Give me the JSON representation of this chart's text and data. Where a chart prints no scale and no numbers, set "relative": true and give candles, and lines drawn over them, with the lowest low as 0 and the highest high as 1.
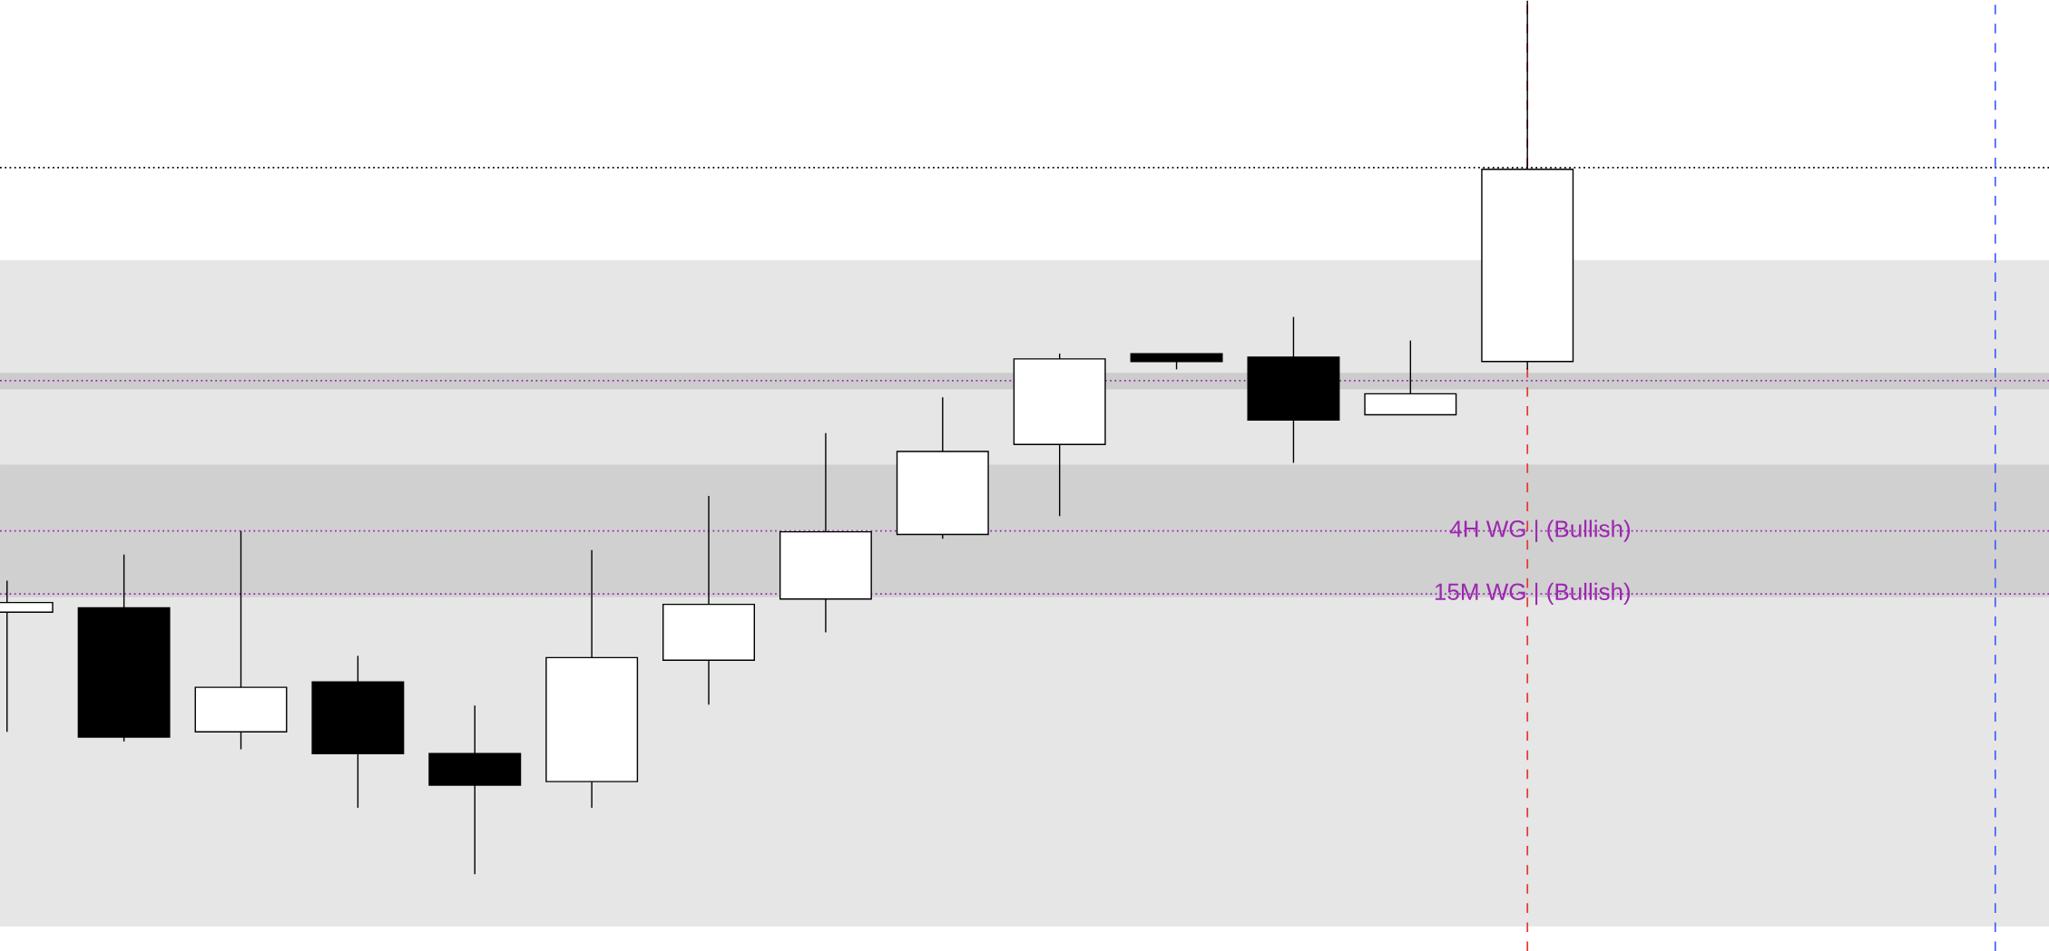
{
  "chart_data": {
    "type": "candlestick",
    "relative": true,
    "tick_labels": false,
    "categories": [
      null,
      null,
      null,
      null,
      null,
      null,
      null,
      null,
      null,
      null,
      null,
      null,
      null,
      null
    ],
    "ohlc": [
      [
        0.3,
        0.336,
        0.163,
        0.311
      ],
      [
        0.305,
        0.366,
        0.152,
        0.157
      ],
      [
        0.163,
        0.393,
        0.143,
        0.214
      ],
      [
        0.22,
        0.25,
        0.076,
        0.138
      ],
      [
        0.138,
        0.193,
        0,
        0.102
      ],
      [
        0.106,
        0.371,
        0.076,
        0.248
      ],
      [
        0.245,
        0.433,
        0.194,
        0.309
      ],
      [
        0.315,
        0.505,
        0.277,
        0.392
      ],
      [
        0.389,
        0.546,
        0.384,
        0.484
      ],
      [
        0.492,
        0.596,
        0.41,
        0.59
      ],
      [
        0.596,
        0.596,
        0.578,
        0.587
      ],
      [
        0.592,
        0.638,
        0.471,
        0.52
      ],
      [
        0.526,
        0.611,
        0.526,
        0.55
      ],
      [
        0.587,
        1,
        0.578,
        0.807
      ]
    ],
    "bands": [
      {
        "axis": "y",
        "from": -0.06,
        "to": 0.703,
        "color": "#e6e6e6"
      },
      {
        "axis": "y",
        "from": 0.317,
        "to": 0.469,
        "color": "#d0d0d0"
      },
      {
        "axis": "y",
        "from": 0.555,
        "to": 0.574,
        "color": "#cccccc"
      }
    ],
    "ref_lines": [
      {
        "axis": "y",
        "value": 0.809,
        "color": "#000000",
        "line_style": "dotted"
      },
      {
        "axis": "y",
        "value": 0.393,
        "color": "#9c27b0",
        "line_style": "dotted",
        "label": "4H WG | (Bullish)"
      },
      {
        "axis": "y",
        "value": 0.321,
        "color": "#9c27b0",
        "line_style": "dotted",
        "label": "15M WG | (Bullish)"
      },
      {
        "axis": "y",
        "value": 0.565,
        "color": "#9c27b0",
        "line_style": "dotted"
      }
    ]
  }
}
